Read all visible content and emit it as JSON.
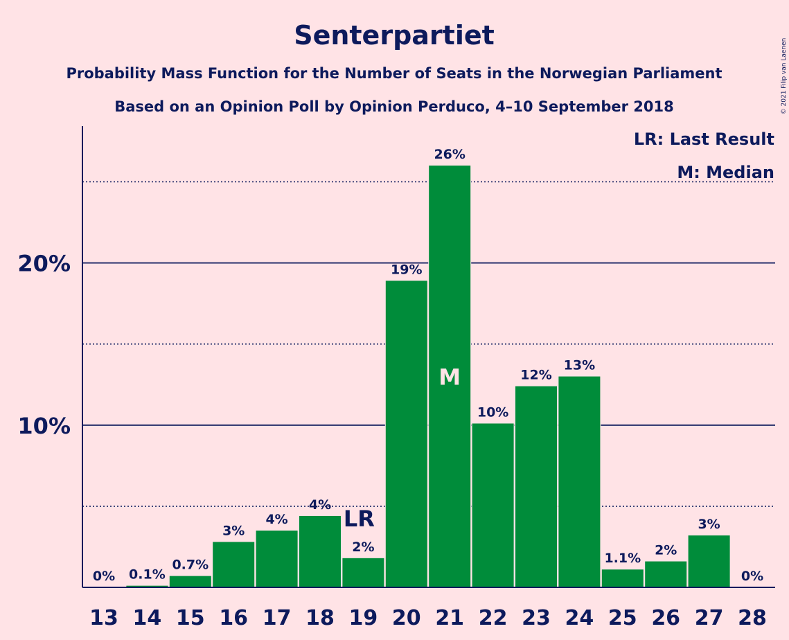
{
  "copyright": "© 2021 Filip van Laenen",
  "colors": {
    "background": "#ffe3e6",
    "bar": "#008c3a",
    "text": "#0d1a5c",
    "median_marker": "#ffe3e6",
    "last_result_marker": "#0d1a5c"
  },
  "legend": {
    "last_result": "LR: Last Result",
    "median": "M: Median",
    "position": "top-right"
  },
  "chart_data": {
    "type": "bar",
    "title": "Senterpartiet",
    "subtitle": "Probability Mass Function for the Number of Seats in the Norwegian Parliament",
    "subtitle2": "Based on an Opinion Poll by Opinion Perduco, 4–10 September 2018",
    "xlabel": "",
    "ylabel": "",
    "ylim": [
      0,
      28
    ],
    "major_gridlines": [
      10,
      20
    ],
    "minor_gridlines": [
      5,
      15,
      25
    ],
    "y_ticks": [
      {
        "value": 10,
        "label": "10%"
      },
      {
        "value": 20,
        "label": "20%"
      }
    ],
    "categories": [
      "13",
      "14",
      "15",
      "16",
      "17",
      "18",
      "19",
      "20",
      "21",
      "22",
      "23",
      "24",
      "25",
      "26",
      "27",
      "28"
    ],
    "values": [
      0,
      0.1,
      0.7,
      2.8,
      3.5,
      4.4,
      1.8,
      18.9,
      26.0,
      10.1,
      12.4,
      13.0,
      1.1,
      1.6,
      3.2,
      0
    ],
    "value_labels": [
      "0%",
      "0.1%",
      "0.7%",
      "3%",
      "4%",
      "4%",
      "2%",
      "19%",
      "26%",
      "10%",
      "12%",
      "13%",
      "1.1%",
      "2%",
      "3%",
      "0%"
    ],
    "markers": [
      {
        "category": "19",
        "text": "LR",
        "meaning": "Last Result"
      },
      {
        "category": "21",
        "text": "M",
        "meaning": "Median"
      }
    ]
  }
}
